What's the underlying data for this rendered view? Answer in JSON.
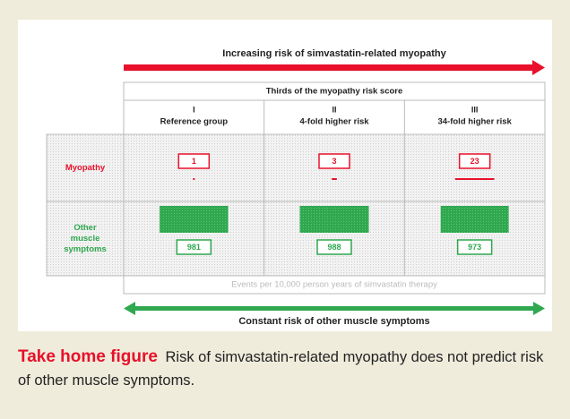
{
  "top_arrow": "Increasing risk of simvastatin-related myopathy",
  "header": "Thirds of the myopathy risk score",
  "columns": [
    {
      "numeral": "I",
      "label": "Reference group"
    },
    {
      "numeral": "II",
      "label": "4-fold higher risk"
    },
    {
      "numeral": "III",
      "label": "34-fold higher risk"
    }
  ],
  "rows": [
    {
      "label": [
        "Myopathy"
      ],
      "color": "#e8102a",
      "values": [
        1,
        3,
        23
      ]
    },
    {
      "label": [
        "Other",
        "muscle",
        "symptoms"
      ],
      "color": "#2fa84f",
      "values": [
        981,
        988,
        973
      ]
    }
  ],
  "footer": "Events per 10,000 person years of simvastatin therapy",
  "bottom_arrow": "Constant risk of other muscle symptoms",
  "caption": {
    "title": "Take home figure",
    "text": "Risk of simvastatin-related myopathy does not predict risk of other muscle symptoms."
  }
}
